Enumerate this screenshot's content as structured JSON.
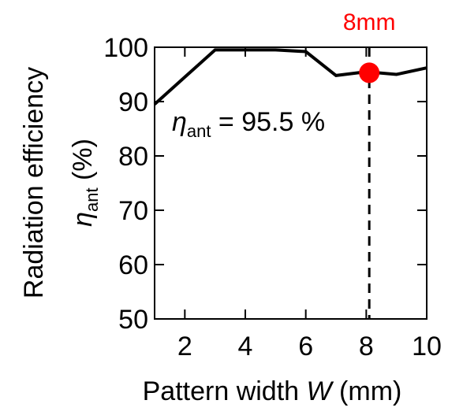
{
  "chart_data": {
    "type": "line",
    "xlabel_prefix": "Pattern width ",
    "xlabel_var": "W",
    "xlabel_suffix": " (mm)",
    "ylabel_line1": "Radiation efficiency",
    "ylabel_symbol": "η",
    "ylabel_sub": "ant",
    "ylabel_unit": " (%)",
    "xlim": [
      1,
      10
    ],
    "ylim": [
      50,
      100
    ],
    "x_ticks": [
      2,
      4,
      6,
      8,
      10
    ],
    "y_ticks": [
      50,
      60,
      70,
      80,
      90,
      100
    ],
    "grid": false,
    "series": [
      {
        "x": [
          1,
          2,
          3,
          4,
          5,
          6,
          7,
          8,
          9,
          10
        ],
        "y": [
          89.5,
          94.5,
          99.5,
          99.5,
          99.5,
          99.2,
          94.8,
          95.5,
          95.0,
          96.2
        ],
        "color": "#000000"
      }
    ],
    "highlight": {
      "x": 8.1,
      "y": 95.3,
      "color": "#ff0000",
      "label": "8mm"
    },
    "annotation": {
      "symbol": "η",
      "sub": "ant",
      "text": " = 95.5 %"
    }
  }
}
